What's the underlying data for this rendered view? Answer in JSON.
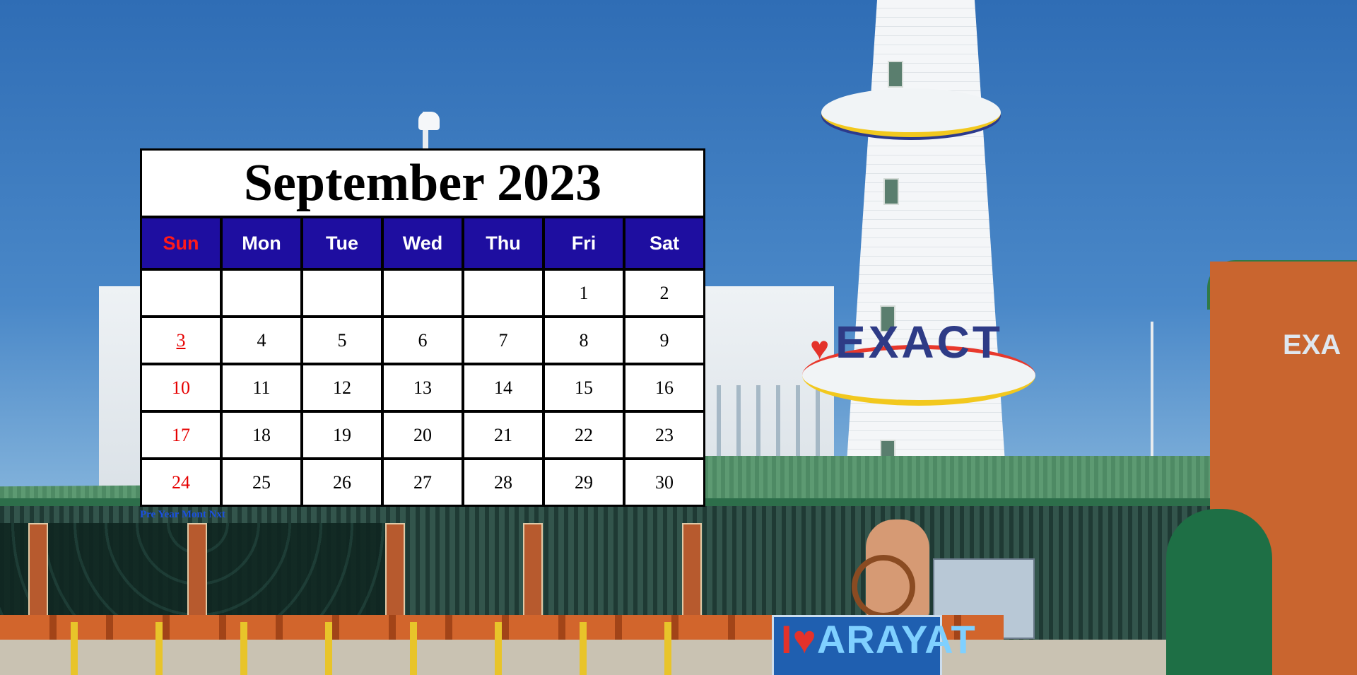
{
  "calendar": {
    "title": "September 2023",
    "weekdays": [
      "Sun",
      "Mon",
      "Tue",
      "Wed",
      "Thu",
      "Fri",
      "Sat"
    ],
    "days": [
      "",
      "",
      "",
      "",
      "",
      "1",
      "2",
      "3",
      "4",
      "5",
      "6",
      "7",
      "8",
      "9",
      "10",
      "11",
      "12",
      "13",
      "14",
      "15",
      "16",
      "17",
      "18",
      "19",
      "20",
      "21",
      "22",
      "23",
      "24",
      "25",
      "26",
      "27",
      "28",
      "29",
      "30"
    ],
    "today": "3",
    "nav": [
      "Pre",
      "Year",
      "Mont",
      "Nxt"
    ]
  },
  "background": {
    "sign_exact": "EXACT",
    "sign_arayat": "ARAYAT",
    "gate_sign": "EXA"
  },
  "colors": {
    "header_bg": "#1e0ea0",
    "sunday": "#e60000",
    "nav_link": "#1a4fe0"
  }
}
